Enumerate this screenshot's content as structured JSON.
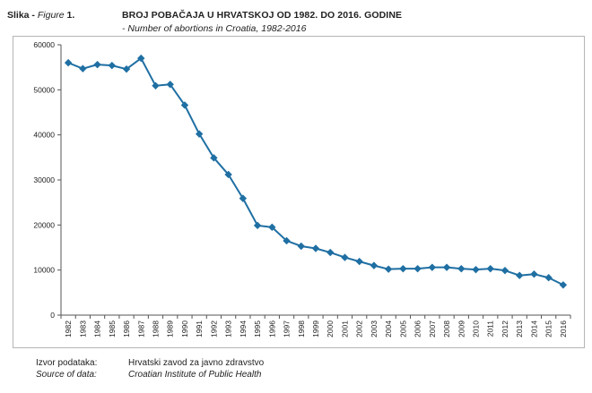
{
  "figure": {
    "label_prefix": "Slika - ",
    "label_en": "Figure",
    "label_number": " 1.",
    "title": "BROJ POBAČAJA U HRVATSKOJ OD 1982. DO 2016. GODINE",
    "subtitle": "- Number of abortions in Croatia, 1982-2016"
  },
  "source": {
    "label_hr": "Izvor podataka:",
    "value_hr": "Hrvatski zavod za javno zdravstvo",
    "label_en": "Source of data:",
    "value_en": "Croatian Institute of Public Health"
  },
  "chart_data": {
    "type": "line",
    "title": "BROJ POBAČAJA U HRVATSKOJ OD 1982. DO 2016. GODINE",
    "subtitle": "- Number of abortions in Croatia, 1982-2016",
    "xlabel": "",
    "ylabel": "",
    "ylim": [
      0,
      60000
    ],
    "yticks": [
      0,
      10000,
      20000,
      30000,
      40000,
      50000,
      60000
    ],
    "grid": false,
    "legend": "none",
    "color": "#1f6fa3",
    "x": [
      "1982",
      "1983",
      "1984",
      "1985",
      "1986",
      "1987",
      "1988",
      "1989",
      "1990",
      "1991",
      "1992",
      "1993",
      "1994",
      "1995",
      "1996",
      "1997",
      "1998",
      "1999",
      "2000",
      "2001",
      "2002",
      "2003",
      "2004",
      "2005",
      "2006",
      "2007",
      "2008",
      "2009",
      "2010",
      "2011",
      "2012",
      "2013",
      "2014",
      "2015",
      "2016"
    ],
    "series": [
      {
        "values": [
          56000,
          54700,
          55600,
          55400,
          54600,
          57000,
          50900,
          51200,
          46600,
          40200,
          34900,
          31200,
          25900,
          19900,
          19500,
          16500,
          15300,
          14800,
          13900,
          12800,
          11900,
          11000,
          10200,
          10300,
          10300,
          10600,
          10600,
          10300,
          10100,
          10300,
          9900,
          8800,
          9100,
          8300,
          6700
        ]
      }
    ]
  }
}
